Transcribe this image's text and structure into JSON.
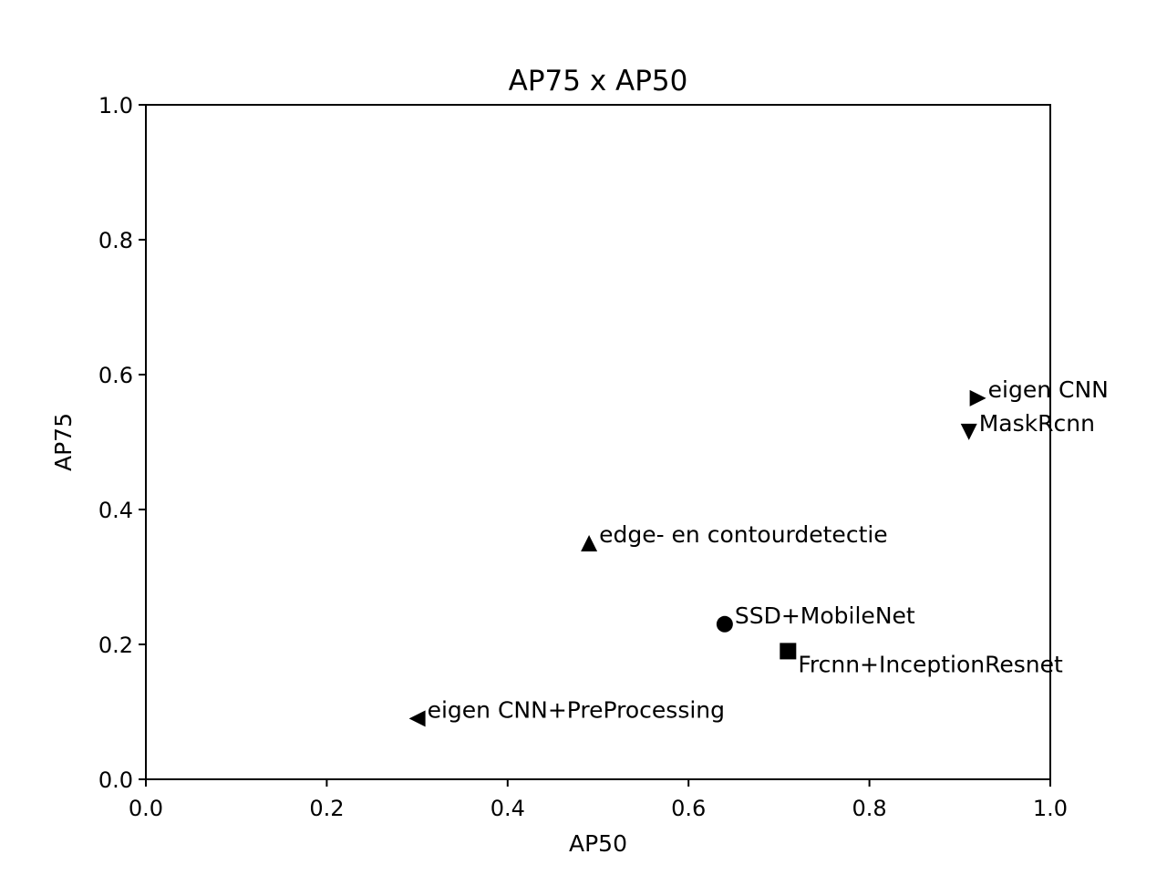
{
  "chart_data": {
    "type": "scatter",
    "title": "AP75 x AP50",
    "xlabel": "AP50",
    "ylabel": "AP75",
    "xlim": [
      0.0,
      1.0
    ],
    "ylim": [
      0.0,
      1.0
    ],
    "xticks": [
      "0.0",
      "0.2",
      "0.4",
      "0.6",
      "0.8",
      "1.0"
    ],
    "yticks": [
      "0.0",
      "0.2",
      "0.4",
      "0.6",
      "0.8",
      "1.0"
    ],
    "grid": false,
    "points": [
      {
        "label": "SSD+MobileNet",
        "x": 0.64,
        "y": 0.23,
        "marker": "circle"
      },
      {
        "label": "Frcnn+InceptionResnet",
        "x": 0.71,
        "y": 0.19,
        "marker": "square"
      },
      {
        "label": "edge- en contourdetectie",
        "x": 0.49,
        "y": 0.35,
        "marker": "triangle-up"
      },
      {
        "label": "MaskRcnn",
        "x": 0.91,
        "y": 0.515,
        "marker": "triangle-down"
      },
      {
        "label": "eigen CNN+PreProcessing",
        "x": 0.3,
        "y": 0.09,
        "marker": "triangle-left"
      },
      {
        "label": "eigen CNN",
        "x": 0.92,
        "y": 0.565,
        "marker": "triangle-right"
      }
    ],
    "marker_color": "#000000"
  }
}
